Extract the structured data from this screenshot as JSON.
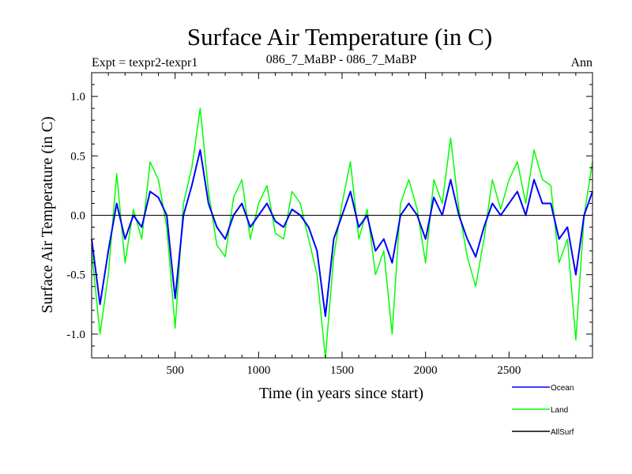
{
  "chart_data": {
    "type": "line",
    "title": "Surface Air Temperature (in C)",
    "subtitle_left": "Expt = texpr2-texpr1",
    "subtitle_center": "086_7_MaBP - 086_7_MaBP",
    "subtitle_right": "Ann",
    "xlabel": "Time (in years since start)",
    "ylabel": "Surface Air Temperature (in C)",
    "xlim": [
      0,
      3000
    ],
    "ylim": [
      -1.2,
      1.2
    ],
    "x_ticks": [
      500,
      1000,
      1500,
      2000,
      2500
    ],
    "x_tick_labels": [
      "500",
      "1000",
      "1500",
      "2000",
      "2500"
    ],
    "y_ticks": [
      1.0,
      0.5,
      0.0,
      -0.5,
      -1.0
    ],
    "y_tick_labels": [
      "1.0",
      "0.5",
      "0.0",
      "-0.5",
      "-1.0"
    ],
    "zero_line": true,
    "legend_position": "bottom-right",
    "series": [
      {
        "name": "Ocean",
        "color": "#0000ff",
        "x": [
          0,
          50,
          100,
          150,
          200,
          250,
          300,
          350,
          400,
          450,
          500,
          550,
          600,
          650,
          700,
          750,
          800,
          850,
          900,
          950,
          1000,
          1050,
          1100,
          1150,
          1200,
          1250,
          1300,
          1350,
          1400,
          1450,
          1500,
          1550,
          1600,
          1650,
          1700,
          1750,
          1800,
          1850,
          1900,
          1950,
          2000,
          2050,
          2100,
          2150,
          2200,
          2250,
          2300,
          2350,
          2400,
          2450,
          2500,
          2550,
          2600,
          2650,
          2700,
          2750,
          2800,
          2850,
          2900,
          2950,
          3000
        ],
        "y": [
          -0.2,
          -0.75,
          -0.3,
          0.1,
          -0.2,
          0.0,
          -0.1,
          0.2,
          0.15,
          0.0,
          -0.7,
          0.0,
          0.25,
          0.55,
          0.1,
          -0.1,
          -0.2,
          0.0,
          0.1,
          -0.1,
          0.0,
          0.1,
          -0.05,
          -0.1,
          0.05,
          0.0,
          -0.1,
          -0.3,
          -0.85,
          -0.2,
          0.0,
          0.2,
          -0.1,
          0.0,
          -0.3,
          -0.2,
          -0.4,
          0.0,
          0.1,
          0.0,
          -0.2,
          0.15,
          0.0,
          0.3,
          0.0,
          -0.2,
          -0.35,
          -0.1,
          0.1,
          0.0,
          0.1,
          0.2,
          0.0,
          0.3,
          0.1,
          0.1,
          -0.2,
          -0.1,
          -0.5,
          0.0,
          0.2
        ]
      },
      {
        "name": "Land",
        "color": "#00ff00",
        "x": [
          0,
          50,
          100,
          150,
          200,
          250,
          300,
          350,
          400,
          450,
          500,
          550,
          600,
          650,
          700,
          750,
          800,
          850,
          900,
          950,
          1000,
          1050,
          1100,
          1150,
          1200,
          1250,
          1300,
          1350,
          1400,
          1450,
          1500,
          1550,
          1600,
          1650,
          1700,
          1750,
          1800,
          1850,
          1900,
          1950,
          2000,
          2050,
          2100,
          2150,
          2200,
          2250,
          2300,
          2350,
          2400,
          2450,
          2500,
          2550,
          2600,
          2650,
          2700,
          2750,
          2800,
          2850,
          2900,
          2950,
          3000
        ],
        "y": [
          -0.3,
          -1.0,
          -0.5,
          0.35,
          -0.4,
          0.05,
          -0.2,
          0.45,
          0.3,
          -0.1,
          -0.95,
          0.1,
          0.4,
          0.9,
          0.2,
          -0.25,
          -0.35,
          0.15,
          0.3,
          -0.2,
          0.1,
          0.25,
          -0.15,
          -0.2,
          0.2,
          0.1,
          -0.2,
          -0.5,
          -1.2,
          -0.35,
          0.1,
          0.45,
          -0.2,
          0.05,
          -0.5,
          -0.3,
          -1.0,
          0.1,
          0.3,
          0.05,
          -0.4,
          0.3,
          0.1,
          0.65,
          0.05,
          -0.35,
          -0.6,
          -0.2,
          0.3,
          0.05,
          0.3,
          0.45,
          0.1,
          0.55,
          0.3,
          0.25,
          -0.4,
          -0.2,
          -1.05,
          0.0,
          0.45
        ]
      },
      {
        "name": "AllSurf",
        "color": "#000000",
        "x": [],
        "y": []
      }
    ]
  }
}
